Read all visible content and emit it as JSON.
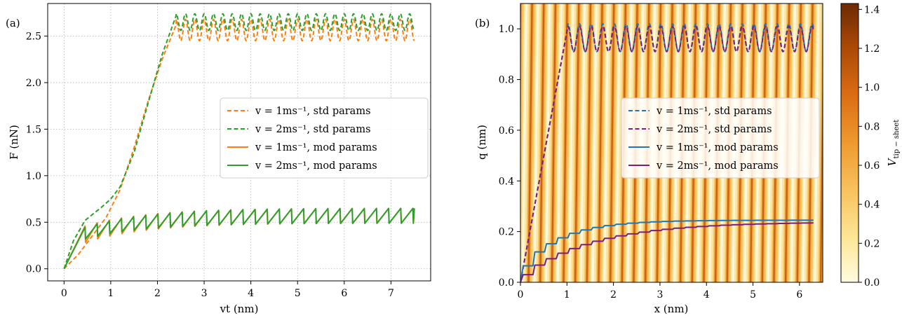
{
  "colors": {
    "orange": "#ff7f0e",
    "green": "#2ca02c",
    "blue": "#1f77b4",
    "purple": "#7b1f7e",
    "colormap": [
      "#fffbe0",
      "#fde89a",
      "#f8c460",
      "#ee9a2e",
      "#d96b12",
      "#a84806",
      "#6b2a04"
    ]
  },
  "chart_data": [
    {
      "type": "line",
      "panel_label": "(a)",
      "xlabel": "vt (nm)",
      "ylabel": "F (nN)",
      "xlim": [
        -0.35,
        7.85
      ],
      "ylim": [
        -0.13,
        2.85
      ],
      "xticks": [
        0,
        1,
        2,
        3,
        4,
        5,
        6,
        7
      ],
      "yticks": [
        0.0,
        0.5,
        1.0,
        1.5,
        2.0,
        2.5
      ],
      "xtick_labels": [
        "0",
        "1",
        "2",
        "3",
        "4",
        "5",
        "6",
        "7"
      ],
      "ytick_labels": [
        "0.0",
        "0.5",
        "1.0",
        "1.5",
        "2.0",
        "2.5"
      ],
      "grid": true,
      "legend_position": "center-right",
      "series": [
        {
          "name": "v = 1ms⁻¹, std params",
          "color": "orange",
          "dash": true,
          "rise": [
            [
              0,
              0
            ],
            [
              0.3,
              0.15
            ],
            [
              0.6,
              0.35
            ],
            [
              0.9,
              0.55
            ],
            [
              1.2,
              0.85
            ],
            [
              1.5,
              1.3
            ],
            [
              1.8,
              1.8
            ],
            [
              2.1,
              2.25
            ],
            [
              2.4,
              2.62
            ]
          ],
          "osc": {
            "x0": 2.4,
            "x1": 7.5,
            "period": 0.2,
            "low": 2.45,
            "high": 2.68
          }
        },
        {
          "name": "v = 2ms⁻¹, std params",
          "color": "green",
          "dash": true,
          "rise": [
            [
              0,
              0
            ],
            [
              0.2,
              0.3
            ],
            [
              0.45,
              0.52
            ],
            [
              0.8,
              0.66
            ],
            [
              1.0,
              0.75
            ],
            [
              1.2,
              0.88
            ],
            [
              1.5,
              1.25
            ],
            [
              1.8,
              1.78
            ],
            [
              2.1,
              2.3
            ],
            [
              2.4,
              2.72
            ]
          ],
          "osc": {
            "x0": 2.4,
            "x1": 7.5,
            "period": 0.2,
            "low": 2.56,
            "high": 2.74
          }
        },
        {
          "name": "v = 1ms⁻¹, mod params",
          "color": "orange",
          "dash": false,
          "saw": {
            "x0": 0,
            "x1": 7.5,
            "period": 0.26,
            "high_start": 0.38,
            "high_end": 0.65,
            "low_start": 0.2,
            "low_end": 0.49
          }
        },
        {
          "name": "v = 2ms⁻¹, mod params",
          "color": "green",
          "dash": false,
          "saw": {
            "x0": 0,
            "x1": 7.5,
            "period": 0.26,
            "high_start": 0.36,
            "high_end": 0.65,
            "low_start": 0.25,
            "low_end": 0.49
          }
        }
      ]
    },
    {
      "type": "line",
      "panel_label": "(b)",
      "xlabel": "x (nm)",
      "ylabel": "q (nm)",
      "xlim": [
        0,
        6.5
      ],
      "ylim": [
        0,
        1.1
      ],
      "xticks": [
        0,
        1,
        2,
        3,
        4,
        5,
        6
      ],
      "yticks": [
        0.0,
        0.2,
        0.4,
        0.6,
        0.8,
        1.0
      ],
      "xtick_labels": [
        "0",
        "1",
        "2",
        "3",
        "4",
        "5",
        "6"
      ],
      "ytick_labels": [
        "0.0",
        "0.2",
        "0.4",
        "0.6",
        "0.8",
        "1.0"
      ],
      "legend_position": "center-right",
      "background": "heatmap of V_tip-sheet, tilted stripes",
      "colorbar": {
        "label": "V",
        "label_subscript": "tip − sheet",
        "ticks": [
          "0.0",
          "0.2",
          "0.4",
          "0.6",
          "0.8",
          "1.0",
          "1.2",
          "1.4"
        ],
        "range": [
          0,
          1.43
        ]
      },
      "series": [
        {
          "name": "v = 1ms⁻¹, std params",
          "color": "blue",
          "dash": true,
          "rise": [
            [
              0,
              0
            ],
            [
              1.02,
              1.01
            ]
          ],
          "osc": {
            "x0": 1.02,
            "x1": 6.3,
            "period": 0.25,
            "low": 0.91,
            "high": 1.02
          }
        },
        {
          "name": "v = 2ms⁻¹, std params",
          "color": "purple",
          "dash": true,
          "rise": [
            [
              0,
              0
            ],
            [
              1.02,
              1.01
            ]
          ],
          "osc": {
            "x0": 1.02,
            "x1": 6.3,
            "period": 0.25,
            "low": 0.91,
            "high": 1.01
          }
        },
        {
          "name": "v = 1ms⁻¹, mod params",
          "color": "blue",
          "dash": false,
          "stairs": {
            "x0": 0,
            "x1": 6.3,
            "period": 0.25,
            "a": 0.245,
            "tau": 0.85,
            "start": 0.065
          }
        },
        {
          "name": "v = 2ms⁻¹, mod params",
          "color": "purple",
          "dash": false,
          "stairs": {
            "x0": 0,
            "x1": 6.3,
            "period": 0.25,
            "a": 0.238,
            "tau": 1.55,
            "start": 0.03
          }
        }
      ]
    }
  ]
}
